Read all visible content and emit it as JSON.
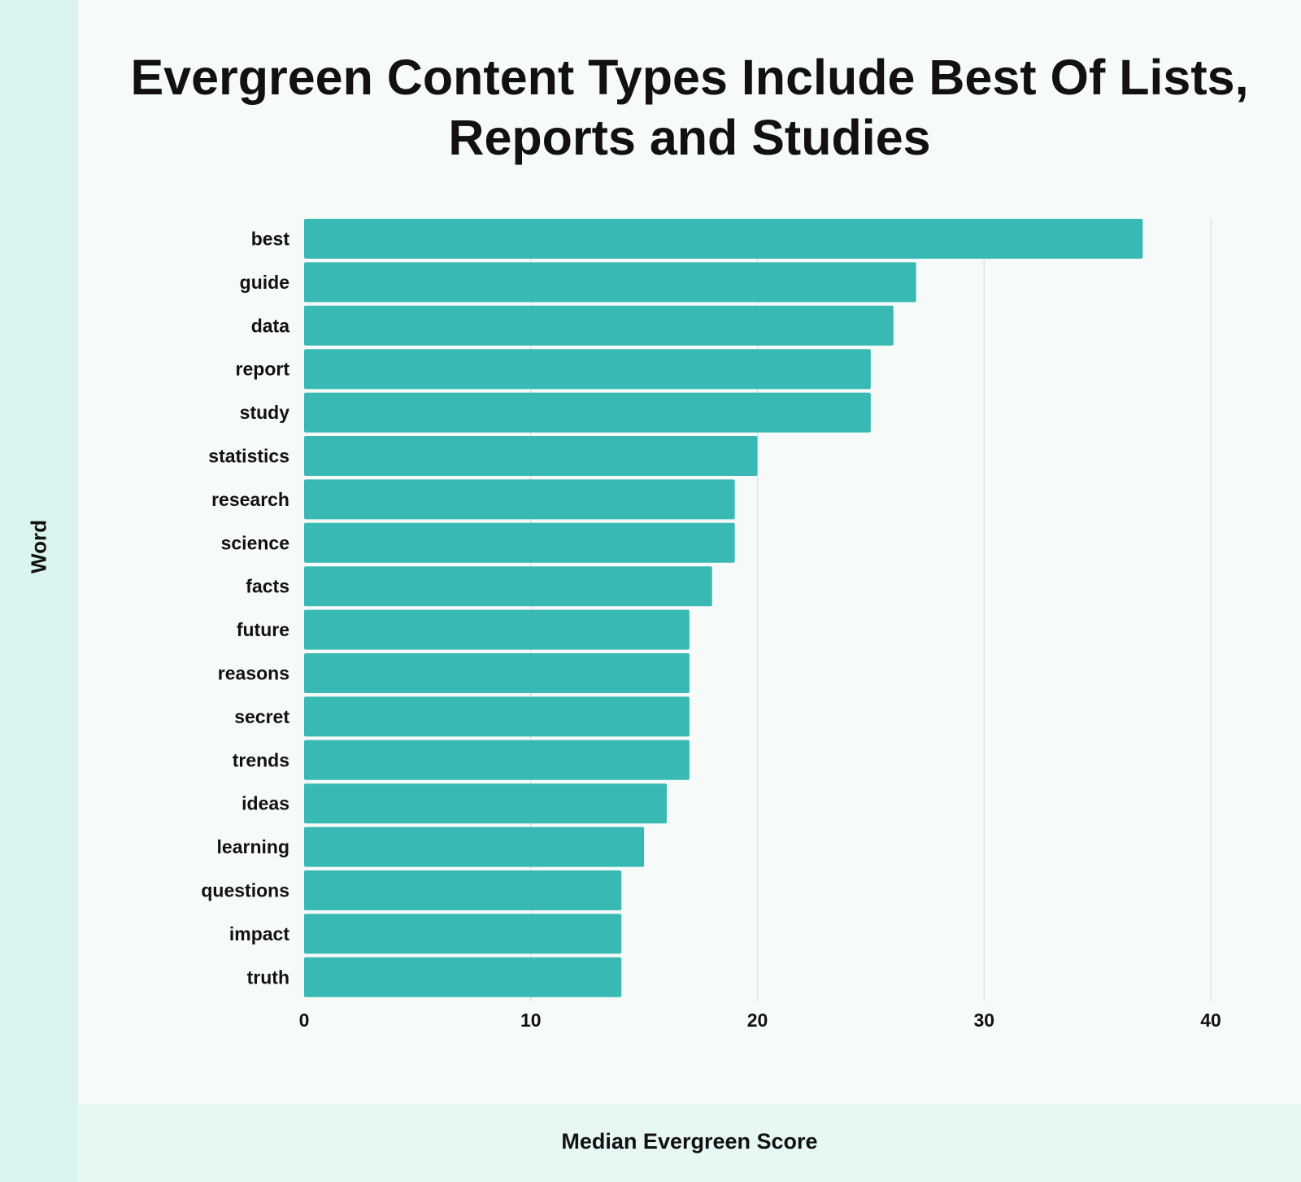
{
  "colors": {
    "bar": "#38b9b4",
    "grid": "#dcdcdc",
    "left_band": "#dbf4ef",
    "bottom_band": "#e7f7f3",
    "background": "#f6fbfa"
  },
  "chart_data": {
    "type": "bar",
    "orientation": "horizontal",
    "title": "Evergreen Content Types Include Best Of Lists, Reports and Studies",
    "xlabel": "Median Evergreen Score",
    "ylabel": "Word",
    "xlim": [
      0,
      40
    ],
    "xticks": [
      0,
      10,
      20,
      30,
      40
    ],
    "grid": "vertical",
    "categories": [
      "best",
      "guide",
      "data",
      "report",
      "study",
      "statistics",
      "research",
      "science",
      "facts",
      "future",
      "reasons",
      "secret",
      "trends",
      "ideas",
      "learning",
      "questions",
      "impact",
      "truth"
    ],
    "values": [
      37,
      27,
      26,
      25,
      25,
      20,
      19,
      19,
      18,
      17,
      17,
      17,
      17,
      16,
      15,
      14,
      14,
      14
    ]
  }
}
